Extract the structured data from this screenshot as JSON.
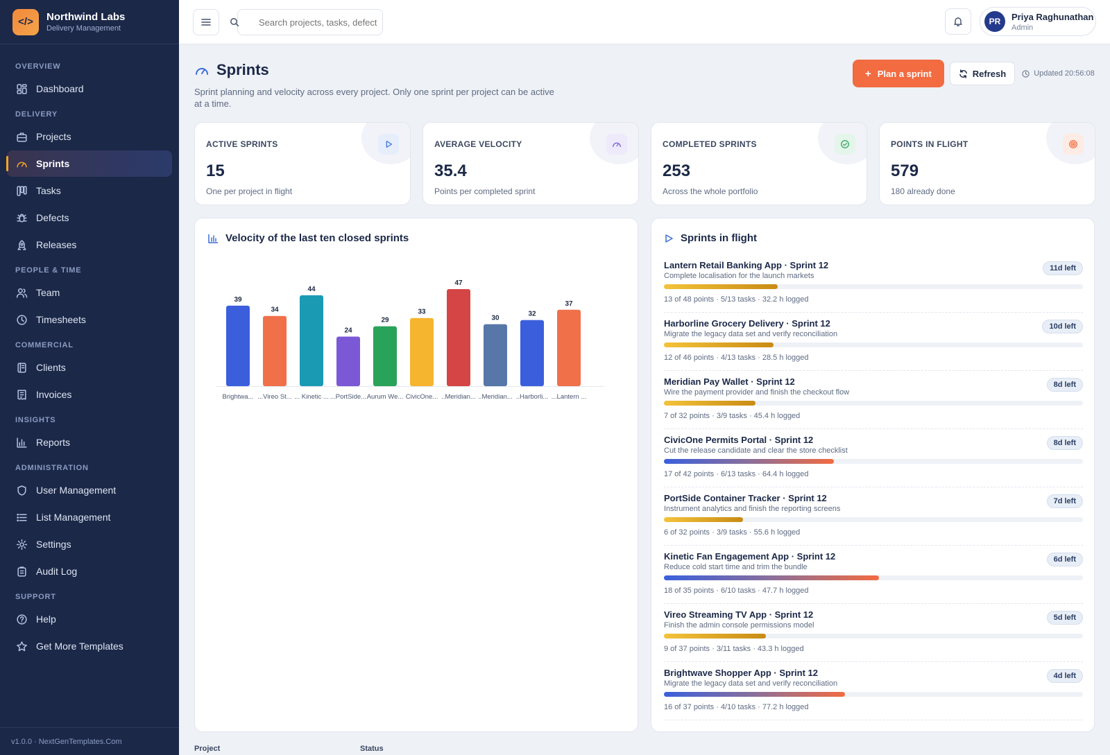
{
  "brand": {
    "name": "Northwind Labs",
    "subtitle": "Delivery Management",
    "logo_icon": "code-icon",
    "accent": "#f28a3c"
  },
  "sidebar": {
    "sections": [
      {
        "label": "OVERVIEW",
        "items": [
          {
            "label": "Dashboard",
            "icon": "dashboard-icon"
          }
        ]
      },
      {
        "label": "DELIVERY",
        "items": [
          {
            "label": "Projects",
            "icon": "briefcase-icon"
          },
          {
            "label": "Sprints",
            "icon": "gauge-icon",
            "active": true
          },
          {
            "label": "Tasks",
            "icon": "kanban-icon"
          },
          {
            "label": "Defects",
            "icon": "bug-icon"
          },
          {
            "label": "Releases",
            "icon": "rocket-icon"
          }
        ]
      },
      {
        "label": "PEOPLE & TIME",
        "items": [
          {
            "label": "Team",
            "icon": "users-icon"
          },
          {
            "label": "Timesheets",
            "icon": "clock-icon"
          }
        ]
      },
      {
        "label": "COMMERCIAL",
        "items": [
          {
            "label": "Clients",
            "icon": "contacts-icon"
          },
          {
            "label": "Invoices",
            "icon": "invoice-icon"
          }
        ]
      },
      {
        "label": "INSIGHTS",
        "items": [
          {
            "label": "Reports",
            "icon": "bar-chart-icon"
          }
        ]
      },
      {
        "label": "ADMINISTRATION",
        "items": [
          {
            "label": "User Management",
            "icon": "shield-icon"
          },
          {
            "label": "List Management",
            "icon": "list-icon"
          },
          {
            "label": "Settings",
            "icon": "gear-icon"
          },
          {
            "label": "Audit Log",
            "icon": "clipboard-icon"
          }
        ]
      },
      {
        "label": "SUPPORT",
        "items": [
          {
            "label": "Help",
            "icon": "help-icon"
          },
          {
            "label": "Get More Templates",
            "icon": "star-icon"
          }
        ]
      }
    ],
    "version": "v1.0.0 · NextGenTemplates.Com"
  },
  "topbar": {
    "search_placeholder": "Search projects, tasks, defect",
    "user": {
      "initials": "PR",
      "name": "Priya Raghunathan",
      "role": "Admin"
    }
  },
  "page": {
    "title": "Sprints",
    "description": "Sprint planning and velocity across every project. Only one sprint per project can be active at a time.",
    "primary_action": "Plan a sprint",
    "secondary_action": "Refresh",
    "updated": "Updated 20:56:08"
  },
  "kpis": [
    {
      "label": "ACTIVE SPRINTS",
      "value": "15",
      "sub": "One per project in flight",
      "icon": "play-icon",
      "color": "#3a6fd8",
      "bg": "#e6edfb"
    },
    {
      "label": "AVERAGE VELOCITY",
      "value": "35.4",
      "sub": "Points per completed sprint",
      "icon": "gauge-icon",
      "color": "#7b5cd6",
      "bg": "#eee9fb"
    },
    {
      "label": "COMPLETED SPRINTS",
      "value": "253",
      "sub": "Across the whole portfolio",
      "icon": "check-circle-icon",
      "color": "#2aa35a",
      "bg": "#e4f5ea"
    },
    {
      "label": "POINTS IN FLIGHT",
      "value": "579",
      "sub": "180 already done",
      "icon": "target-icon",
      "color": "#f26b41",
      "bg": "#fdebe4"
    }
  ],
  "velocity_panel": {
    "title": "Velocity of the last ten closed sprints",
    "icon": "bar-chart-icon"
  },
  "chart_data": {
    "type": "bar",
    "categories": [
      "Brightwa...",
      "...Vireo St...",
      "... Kinetic ...",
      "...PortSide...",
      "Aurum We...",
      "CivicOne...",
      "..Meridian...",
      "..Meridian...",
      "..Harborli...",
      "...Lantern ..."
    ],
    "values": [
      39,
      34,
      44,
      24,
      29,
      33,
      47,
      30,
      32,
      37
    ],
    "colors": [
      "#3b5fdc",
      "#f0704a",
      "#1a9bb3",
      "#7b58d6",
      "#2aa35a",
      "#f6b52e",
      "#d64545",
      "#5677a8",
      "#3b5fdc",
      "#f0704a"
    ],
    "ylim": [
      0,
      47
    ],
    "grid": false,
    "data_labels": true
  },
  "flight_panel": {
    "title": "Sprints in flight",
    "icon": "play-icon",
    "sprints": [
      {
        "name": "Lantern Retail Banking App · Sprint 12",
        "goal": "Complete localisation for the launch markets",
        "left": "11d left",
        "done": 13,
        "total": 48,
        "meta": "13 of 48 points · 5/13 tasks · 32.2 h logged",
        "style": "gold"
      },
      {
        "name": "Harborline Grocery Delivery · Sprint 12",
        "goal": "Migrate the legacy data set and verify reconciliation",
        "left": "10d left",
        "done": 12,
        "total": 46,
        "meta": "12 of 46 points · 4/13 tasks · 28.5 h logged",
        "style": "gold"
      },
      {
        "name": "Meridian Pay Wallet · Sprint 12",
        "goal": "Wire the payment provider and finish the checkout flow",
        "left": "8d left",
        "done": 7,
        "total": 32,
        "meta": "7 of 32 points · 3/9 tasks · 45.4 h logged",
        "style": "gold"
      },
      {
        "name": "CivicOne Permits Portal · Sprint 12",
        "goal": "Cut the release candidate and clear the store checklist",
        "left": "8d left",
        "done": 17,
        "total": 42,
        "meta": "17 of 42 points · 6/13 tasks · 64.4 h logged",
        "style": "blue"
      },
      {
        "name": "PortSide Container Tracker · Sprint 12",
        "goal": "Instrument analytics and finish the reporting screens",
        "left": "7d left",
        "done": 6,
        "total": 32,
        "meta": "6 of 32 points · 3/9 tasks · 55.6 h logged",
        "style": "gold"
      },
      {
        "name": "Kinetic Fan Engagement App · Sprint 12",
        "goal": "Reduce cold start time and trim the bundle",
        "left": "6d left",
        "done": 18,
        "total": 35,
        "meta": "18 of 35 points · 6/10 tasks · 47.7 h logged",
        "style": "blue"
      },
      {
        "name": "Vireo Streaming TV App · Sprint 12",
        "goal": "Finish the admin console permissions model",
        "left": "5d left",
        "done": 9,
        "total": 37,
        "meta": "9 of 37 points · 3/11 tasks · 43.3 h logged",
        "style": "gold"
      },
      {
        "name": "Brightwave Shopper App · Sprint 12",
        "goal": "Migrate the legacy data set and verify reconciliation",
        "left": "4d left",
        "done": 16,
        "total": 37,
        "meta": "16 of 37 points · 4/10 tasks · 77.2 h logged",
        "style": "blue"
      }
    ]
  },
  "table": {
    "columns": [
      "Project",
      "Status"
    ]
  }
}
